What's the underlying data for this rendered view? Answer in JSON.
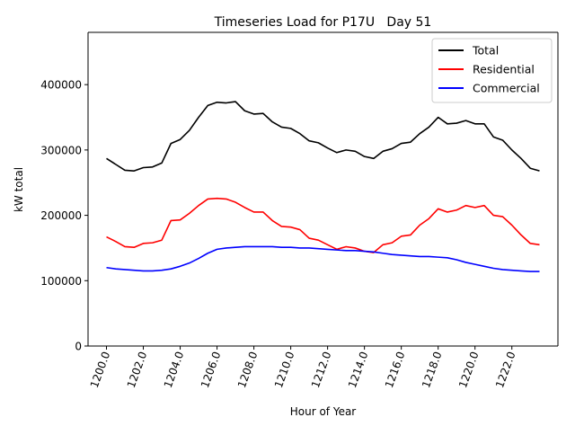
{
  "chart_data": {
    "type": "line",
    "title": "Timeseries Load for P17U   Day 51",
    "xlabel": "Hour of Year",
    "ylabel": "kW total",
    "xlim": [
      1199.0,
      1224.5
    ],
    "ylim": [
      0,
      480000
    ],
    "x_ticks": [
      1200,
      1202,
      1204,
      1206,
      1208,
      1210,
      1212,
      1214,
      1216,
      1218,
      1220,
      1222
    ],
    "x_tick_labels": [
      "1200.0",
      "1202.0",
      "1204.0",
      "1206.0",
      "1208.0",
      "1210.0",
      "1212.0",
      "1214.0",
      "1216.0",
      "1218.0",
      "1220.0",
      "1222.0"
    ],
    "y_ticks": [
      0,
      100000,
      200000,
      300000,
      400000
    ],
    "y_tick_labels": [
      "0",
      "100000",
      "200000",
      "300000",
      "400000"
    ],
    "legend_position": "top-right",
    "x": [
      1200,
      1200.5,
      1201,
      1201.5,
      1202,
      1202.5,
      1203,
      1203.5,
      1204,
      1204.5,
      1205,
      1205.5,
      1206,
      1206.5,
      1207,
      1207.5,
      1208,
      1208.5,
      1209,
      1209.5,
      1210,
      1210.5,
      1211,
      1211.5,
      1212,
      1212.5,
      1213,
      1213.5,
      1214,
      1214.5,
      1215,
      1215.5,
      1216,
      1216.5,
      1217,
      1217.5,
      1218,
      1218.5,
      1219,
      1219.5,
      1220,
      1220.5,
      1221,
      1221.5,
      1222,
      1222.5,
      1223,
      1223.5
    ],
    "series": [
      {
        "name": "Total",
        "color": "#000000",
        "values": [
          287000,
          278000,
          269000,
          268000,
          273000,
          274000,
          280000,
          310000,
          316000,
          330000,
          350000,
          368000,
          373000,
          372000,
          374000,
          360000,
          355000,
          356000,
          343000,
          335000,
          333000,
          325000,
          314000,
          311000,
          303000,
          296000,
          300000,
          298000,
          290000,
          287000,
          298000,
          302000,
          310000,
          312000,
          325000,
          335000,
          350000,
          340000,
          341000,
          345000,
          340000,
          340000,
          320000,
          315000,
          300000,
          287000,
          272000,
          268000
        ]
      },
      {
        "name": "Residential",
        "color": "#ff0000",
        "values": [
          167000,
          160000,
          152000,
          151000,
          157000,
          158000,
          162000,
          192000,
          193000,
          203000,
          215000,
          225000,
          226000,
          225000,
          220000,
          212000,
          205000,
          205000,
          192000,
          183000,
          182000,
          178000,
          165000,
          162000,
          155000,
          148000,
          152000,
          150000,
          145000,
          143000,
          155000,
          158000,
          168000,
          170000,
          185000,
          195000,
          210000,
          205000,
          208000,
          215000,
          212000,
          215000,
          200000,
          198000,
          185000,
          170000,
          157000,
          155000
        ]
      },
      {
        "name": "Commercial",
        "color": "#0000ff",
        "values": [
          120000,
          118000,
          117000,
          116000,
          115000,
          115000,
          116000,
          118000,
          122000,
          127000,
          134000,
          142000,
          148000,
          150000,
          151000,
          152000,
          152000,
          152000,
          152000,
          151000,
          151000,
          150000,
          150000,
          149000,
          148000,
          147000,
          146000,
          146000,
          145000,
          144000,
          142000,
          140000,
          139000,
          138000,
          137000,
          137000,
          136000,
          135000,
          132000,
          128000,
          125000,
          122000,
          119000,
          117000,
          116000,
          115000,
          114000,
          114000
        ]
      }
    ]
  }
}
